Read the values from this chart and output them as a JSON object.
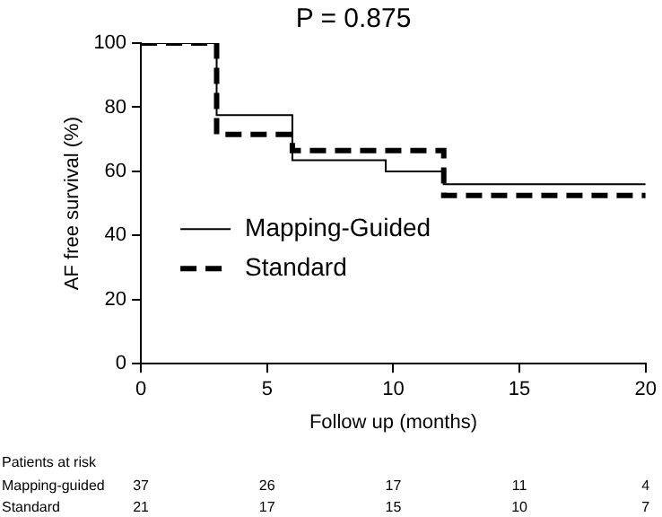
{
  "chart_data": {
    "type": "step",
    "title": "P = 0.875",
    "xlabel": "Follow up (months)",
    "ylabel": "AF free survival (%)",
    "xlim": [
      0,
      20
    ],
    "xticks": [
      0,
      5,
      10,
      15,
      20
    ],
    "ylim": [
      0,
      100
    ],
    "yticks": [
      0,
      20,
      40,
      60,
      80,
      100
    ],
    "grid": false,
    "legend": "left",
    "marker": "none",
    "series": [
      {
        "name": "Mapping-Guided",
        "color": "#000000",
        "line_style": "solid",
        "x": [
          0,
          3,
          6,
          9.7,
          12,
          20
        ],
        "values": [
          100,
          77.5,
          63.5,
          60,
          56,
          56
        ]
      },
      {
        "name": "Standard",
        "color": "#000000",
        "line_style": "dashed",
        "x": [
          0,
          3,
          6,
          12,
          20
        ],
        "values": [
          100,
          71.5,
          66.5,
          52.5,
          52.5
        ]
      }
    ],
    "annotations": [
      "Patients at risk",
      "Mapping-guided",
      "37",
      "26",
      "17",
      "11",
      "4",
      "Standard",
      "21",
      "17",
      "15",
      "10",
      "7"
    ]
  }
}
